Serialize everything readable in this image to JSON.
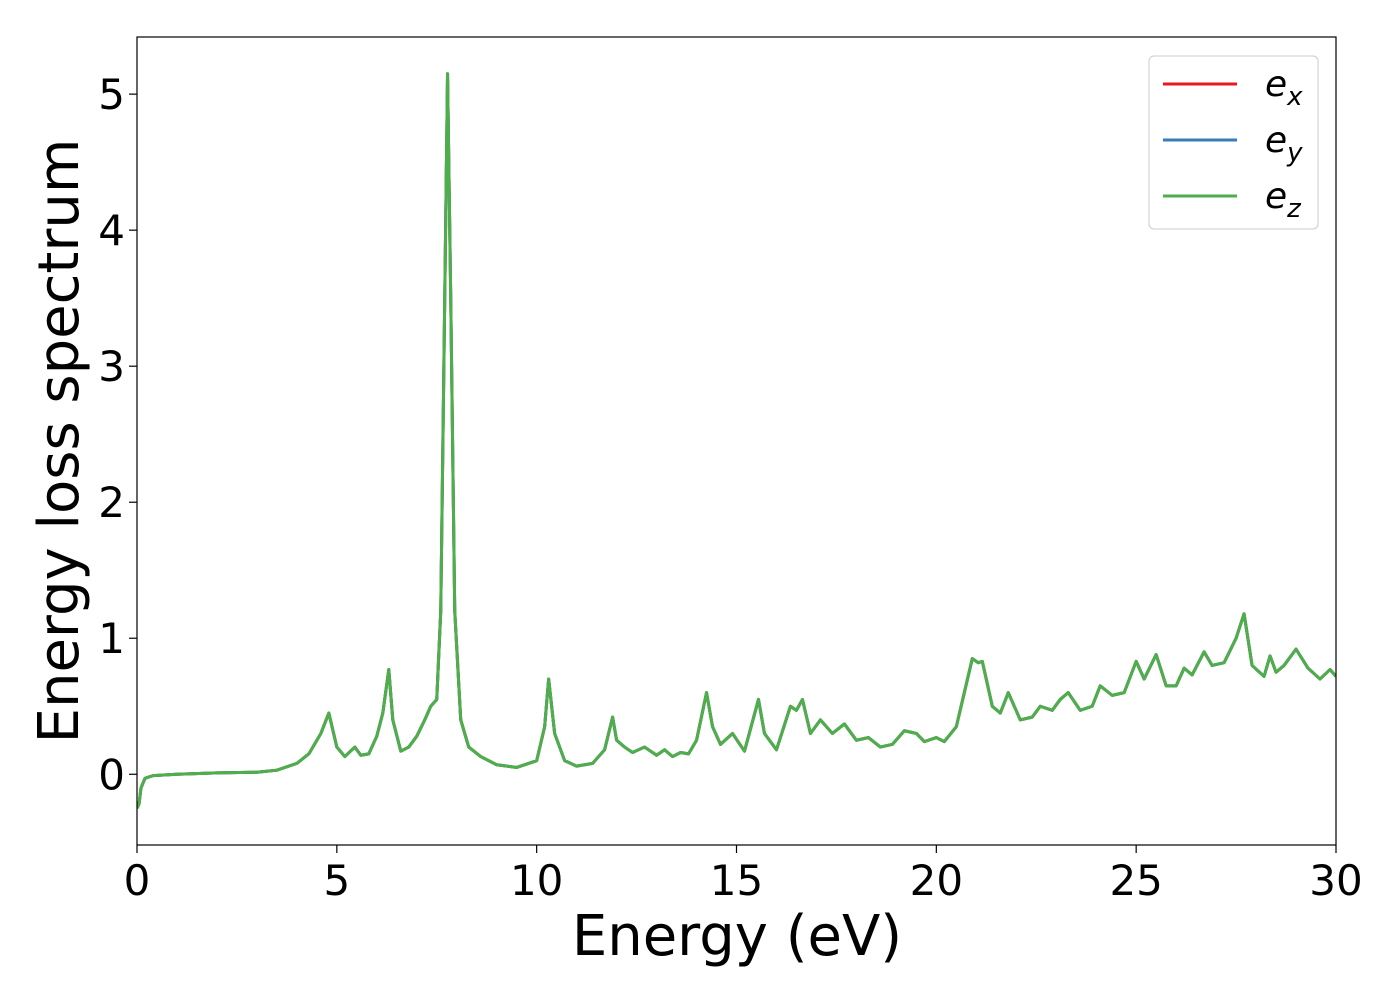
{
  "chart_data": {
    "type": "line",
    "xlabel": "Energy (eV)",
    "ylabel": "Energy loss spectrum",
    "x": [
      0,
      0.05,
      0.1,
      0.2,
      0.4,
      1,
      2,
      3,
      3.5,
      4,
      4.3,
      4.6,
      4.8,
      5.0,
      5.2,
      5.45,
      5.6,
      5.8,
      6.0,
      6.15,
      6.3,
      6.4,
      6.6,
      6.8,
      7.0,
      7.2,
      7.35,
      7.5,
      7.6,
      7.7,
      7.77,
      7.85,
      7.95,
      8.1,
      8.3,
      8.6,
      9.0,
      9.5,
      10.0,
      10.2,
      10.3,
      10.45,
      10.7,
      11.0,
      11.4,
      11.7,
      11.9,
      12.0,
      12.2,
      12.4,
      12.7,
      13.0,
      13.2,
      13.4,
      13.6,
      13.8,
      14.0,
      14.25,
      14.4,
      14.6,
      14.9,
      15.2,
      15.55,
      15.7,
      16.0,
      16.35,
      16.5,
      16.65,
      16.85,
      17.1,
      17.4,
      17.7,
      18.0,
      18.3,
      18.6,
      18.9,
      19.2,
      19.5,
      19.7,
      20.0,
      20.2,
      20.5,
      20.9,
      21.05,
      21.15,
      21.4,
      21.6,
      21.8,
      22.1,
      22.4,
      22.6,
      22.9,
      23.1,
      23.3,
      23.6,
      23.9,
      24.1,
      24.4,
      24.7,
      25.0,
      25.2,
      25.5,
      25.75,
      26.0,
      26.2,
      26.4,
      26.7,
      26.9,
      27.2,
      27.5,
      27.7,
      27.9,
      28.2,
      28.35,
      28.5,
      28.7,
      29.0,
      29.3,
      29.6,
      29.85,
      30.0
    ],
    "series": [
      {
        "name": "ex",
        "color": "#e41a1c",
        "values": [
          -0.25,
          -0.22,
          -0.1,
          -0.03,
          -0.01,
          0,
          0.01,
          0.015,
          0.03,
          0.08,
          0.15,
          0.3,
          0.45,
          0.2,
          0.13,
          0.2,
          0.14,
          0.15,
          0.28,
          0.45,
          0.77,
          0.4,
          0.17,
          0.2,
          0.28,
          0.4,
          0.5,
          0.55,
          1.2,
          3.5,
          5.15,
          3.5,
          1.2,
          0.4,
          0.2,
          0.13,
          0.07,
          0.05,
          0.1,
          0.35,
          0.7,
          0.3,
          0.1,
          0.06,
          0.08,
          0.18,
          0.42,
          0.25,
          0.2,
          0.16,
          0.2,
          0.14,
          0.18,
          0.13,
          0.16,
          0.15,
          0.25,
          0.6,
          0.35,
          0.22,
          0.3,
          0.17,
          0.55,
          0.3,
          0.18,
          0.5,
          0.47,
          0.55,
          0.3,
          0.4,
          0.3,
          0.37,
          0.25,
          0.27,
          0.2,
          0.22,
          0.32,
          0.3,
          0.24,
          0.27,
          0.24,
          0.35,
          0.85,
          0.82,
          0.83,
          0.5,
          0.45,
          0.6,
          0.4,
          0.42,
          0.5,
          0.47,
          0.55,
          0.6,
          0.47,
          0.5,
          0.65,
          0.58,
          0.6,
          0.83,
          0.7,
          0.88,
          0.65,
          0.65,
          0.78,
          0.73,
          0.9,
          0.8,
          0.82,
          1.0,
          1.18,
          0.8,
          0.72,
          0.87,
          0.75,
          0.8,
          0.92,
          0.78,
          0.7,
          0.77,
          0.72
        ]
      },
      {
        "name": "ey",
        "color": "#377eb8",
        "values": [
          -0.25,
          -0.22,
          -0.1,
          -0.03,
          -0.01,
          0,
          0.01,
          0.015,
          0.03,
          0.08,
          0.15,
          0.3,
          0.45,
          0.2,
          0.13,
          0.2,
          0.14,
          0.15,
          0.28,
          0.45,
          0.77,
          0.4,
          0.17,
          0.2,
          0.28,
          0.4,
          0.5,
          0.55,
          1.2,
          3.5,
          5.15,
          3.5,
          1.2,
          0.4,
          0.2,
          0.13,
          0.07,
          0.05,
          0.1,
          0.35,
          0.7,
          0.3,
          0.1,
          0.06,
          0.08,
          0.18,
          0.42,
          0.25,
          0.2,
          0.16,
          0.2,
          0.14,
          0.18,
          0.13,
          0.16,
          0.15,
          0.25,
          0.6,
          0.35,
          0.22,
          0.3,
          0.17,
          0.55,
          0.3,
          0.18,
          0.5,
          0.47,
          0.55,
          0.3,
          0.4,
          0.3,
          0.37,
          0.25,
          0.27,
          0.2,
          0.22,
          0.32,
          0.3,
          0.24,
          0.27,
          0.24,
          0.35,
          0.85,
          0.82,
          0.83,
          0.5,
          0.45,
          0.6,
          0.4,
          0.42,
          0.5,
          0.47,
          0.55,
          0.6,
          0.47,
          0.5,
          0.65,
          0.58,
          0.6,
          0.83,
          0.7,
          0.88,
          0.65,
          0.65,
          0.78,
          0.73,
          0.9,
          0.8,
          0.82,
          1.0,
          1.18,
          0.8,
          0.72,
          0.87,
          0.75,
          0.8,
          0.92,
          0.78,
          0.7,
          0.77,
          0.72
        ]
      },
      {
        "name": "ez",
        "color": "#4daf4a",
        "values": [
          -0.25,
          -0.22,
          -0.1,
          -0.03,
          -0.01,
          0,
          0.01,
          0.015,
          0.03,
          0.08,
          0.15,
          0.3,
          0.45,
          0.2,
          0.13,
          0.2,
          0.14,
          0.15,
          0.28,
          0.45,
          0.77,
          0.4,
          0.17,
          0.2,
          0.28,
          0.4,
          0.5,
          0.55,
          1.2,
          3.5,
          5.15,
          3.5,
          1.2,
          0.4,
          0.2,
          0.13,
          0.07,
          0.05,
          0.1,
          0.35,
          0.7,
          0.3,
          0.1,
          0.06,
          0.08,
          0.18,
          0.42,
          0.25,
          0.2,
          0.16,
          0.2,
          0.14,
          0.18,
          0.13,
          0.16,
          0.15,
          0.25,
          0.6,
          0.35,
          0.22,
          0.3,
          0.17,
          0.55,
          0.3,
          0.18,
          0.5,
          0.47,
          0.55,
          0.3,
          0.4,
          0.3,
          0.37,
          0.25,
          0.27,
          0.2,
          0.22,
          0.32,
          0.3,
          0.24,
          0.27,
          0.24,
          0.35,
          0.85,
          0.82,
          0.83,
          0.5,
          0.45,
          0.6,
          0.4,
          0.42,
          0.5,
          0.47,
          0.55,
          0.6,
          0.47,
          0.5,
          0.65,
          0.58,
          0.6,
          0.83,
          0.7,
          0.88,
          0.65,
          0.65,
          0.78,
          0.73,
          0.9,
          0.8,
          0.82,
          1.0,
          1.18,
          0.8,
          0.72,
          0.87,
          0.75,
          0.8,
          0.92,
          0.78,
          0.7,
          0.77,
          0.72
        ]
      }
    ],
    "xlim": [
      0,
      30
    ],
    "xticks": [
      0,
      5,
      10,
      15,
      20,
      25,
      30
    ],
    "ylim": [
      -0.52,
      5.42
    ],
    "yticks": [
      0,
      1,
      2,
      3,
      4,
      5
    ],
    "grid": false,
    "legend": "upper right"
  }
}
